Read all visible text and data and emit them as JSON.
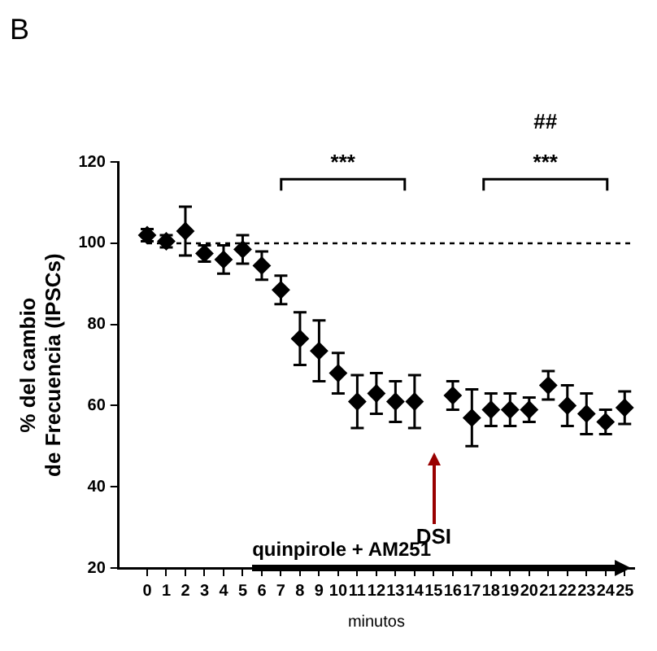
{
  "chart_data": {
    "type": "scatter",
    "title": "B",
    "xlabel": "minutos",
    "ylabel": "% del cambio\nde Frecuencia (IPSCs)",
    "x": [
      0,
      1,
      2,
      3,
      4,
      5,
      6,
      7,
      8,
      9,
      10,
      11,
      12,
      13,
      14,
      16,
      17,
      18,
      19,
      20,
      21,
      22,
      23,
      24,
      25
    ],
    "series": [
      {
        "color": "#000000",
        "values": [
          102,
          100.5,
          103,
          97.5,
          96,
          98.5,
          94.5,
          88.5,
          76.5,
          73.5,
          68,
          61,
          63,
          61,
          61,
          62.5,
          57,
          59,
          59,
          59,
          65,
          60,
          58,
          56,
          59.5
        ],
        "errors": [
          1.5,
          1.5,
          6,
          2,
          3.5,
          3.5,
          3.5,
          3.5,
          6.5,
          7.5,
          5,
          6.5,
          5,
          5,
          6.5,
          3.5,
          7,
          4,
          4,
          3,
          3.5,
          5,
          5,
          3,
          4
        ]
      }
    ],
    "xlim": [
      -1.5,
      25.5
    ],
    "xticks": [
      0,
      1,
      2,
      3,
      4,
      5,
      6,
      7,
      8,
      9,
      10,
      11,
      12,
      13,
      14,
      15,
      16,
      17,
      18,
      19,
      20,
      21,
      22,
      23,
      24,
      25
    ],
    "ylim": [
      20,
      120
    ],
    "yticks": [
      20,
      40,
      60,
      80,
      100,
      120
    ],
    "marker": "diamond",
    "grid": false,
    "legend": false,
    "ref_lines": [
      {
        "axis": "y",
        "value": 100,
        "line_style": "dotted",
        "color": "#000000"
      }
    ],
    "annotations": [
      "***",
      "***",
      "##",
      "DSI",
      "quinpirole + AM251"
    ]
  }
}
